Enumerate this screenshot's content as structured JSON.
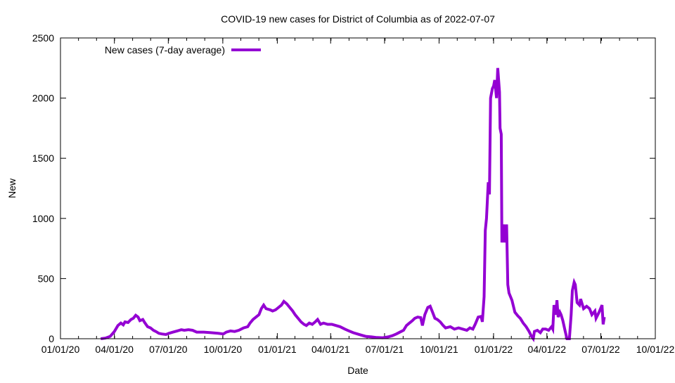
{
  "chart_data": {
    "type": "line",
    "title": "COVID-19 new cases for District of Columbia as of 2022-07-07",
    "xlabel": "Date",
    "ylabel": "New",
    "x_unit": "days since 2020-01-01",
    "xlim": [
      0,
      1004
    ],
    "ylim": [
      0,
      2500
    ],
    "grid": false,
    "legend_position": "top-left",
    "x_ticks": [
      {
        "day": 0,
        "label": "01/01/20"
      },
      {
        "day": 91,
        "label": "04/01/20"
      },
      {
        "day": 182,
        "label": "07/01/20"
      },
      {
        "day": 274,
        "label": "10/01/20"
      },
      {
        "day": 366,
        "label": "01/01/21"
      },
      {
        "day": 456,
        "label": "04/01/21"
      },
      {
        "day": 547,
        "label": "07/01/21"
      },
      {
        "day": 639,
        "label": "10/01/21"
      },
      {
        "day": 731,
        "label": "01/01/22"
      },
      {
        "day": 821,
        "label": "04/01/22"
      },
      {
        "day": 912,
        "label": "07/01/22"
      },
      {
        "day": 1004,
        "label": "10/01/22"
      }
    ],
    "y_ticks": [
      {
        "value": 0,
        "label": "0"
      },
      {
        "value": 500,
        "label": "500"
      },
      {
        "value": 1000,
        "label": "1000"
      },
      {
        "value": 1500,
        "label": "1500"
      },
      {
        "value": 2000,
        "label": "2000"
      },
      {
        "value": 2500,
        "label": "2500"
      }
    ],
    "series": [
      {
        "name": "New cases (7-day average)",
        "color": "#9400d3",
        "points": [
          [
            68,
            0
          ],
          [
            76,
            5
          ],
          [
            84,
            20
          ],
          [
            91,
            60
          ],
          [
            97,
            110
          ],
          [
            102,
            130
          ],
          [
            106,
            115
          ],
          [
            109,
            140
          ],
          [
            114,
            135
          ],
          [
            119,
            160
          ],
          [
            123,
            170
          ],
          [
            127,
            195
          ],
          [
            131,
            180
          ],
          [
            134,
            150
          ],
          [
            139,
            160
          ],
          [
            142,
            135
          ],
          [
            147,
            100
          ],
          [
            152,
            90
          ],
          [
            157,
            70
          ],
          [
            161,
            60
          ],
          [
            166,
            45
          ],
          [
            171,
            40
          ],
          [
            178,
            35
          ],
          [
            183,
            45
          ],
          [
            190,
            55
          ],
          [
            197,
            65
          ],
          [
            204,
            75
          ],
          [
            209,
            70
          ],
          [
            216,
            75
          ],
          [
            223,
            70
          ],
          [
            230,
            55
          ],
          [
            242,
            55
          ],
          [
            254,
            50
          ],
          [
            266,
            45
          ],
          [
            275,
            40
          ],
          [
            280,
            55
          ],
          [
            287,
            65
          ],
          [
            294,
            60
          ],
          [
            301,
            70
          ],
          [
            309,
            90
          ],
          [
            316,
            100
          ],
          [
            320,
            130
          ],
          [
            325,
            160
          ],
          [
            330,
            180
          ],
          [
            335,
            200
          ],
          [
            339,
            250
          ],
          [
            343,
            280
          ],
          [
            347,
            250
          ],
          [
            354,
            240
          ],
          [
            358,
            230
          ],
          [
            363,
            240
          ],
          [
            368,
            260
          ],
          [
            373,
            280
          ],
          [
            377,
            310
          ],
          [
            382,
            290
          ],
          [
            387,
            260
          ],
          [
            392,
            230
          ],
          [
            396,
            200
          ],
          [
            401,
            170
          ],
          [
            406,
            140
          ],
          [
            411,
            120
          ],
          [
            415,
            110
          ],
          [
            420,
            130
          ],
          [
            425,
            120
          ],
          [
            430,
            140
          ],
          [
            434,
            160
          ],
          [
            439,
            120
          ],
          [
            444,
            130
          ],
          [
            451,
            120
          ],
          [
            458,
            120
          ],
          [
            465,
            110
          ],
          [
            472,
            100
          ],
          [
            480,
            80
          ],
          [
            487,
            65
          ],
          [
            494,
            50
          ],
          [
            501,
            40
          ],
          [
            508,
            30
          ],
          [
            515,
            20
          ],
          [
            525,
            15
          ],
          [
            534,
            10
          ],
          [
            544,
            8
          ],
          [
            553,
            15
          ],
          [
            560,
            25
          ],
          [
            567,
            40
          ],
          [
            575,
            60
          ],
          [
            579,
            70
          ],
          [
            584,
            110
          ],
          [
            589,
            130
          ],
          [
            594,
            150
          ],
          [
            598,
            170
          ],
          [
            603,
            180
          ],
          [
            608,
            175
          ],
          [
            611,
            110
          ],
          [
            615,
            200
          ],
          [
            620,
            260
          ],
          [
            624,
            270
          ],
          [
            628,
            220
          ],
          [
            632,
            170
          ],
          [
            636,
            160
          ],
          [
            641,
            140
          ],
          [
            646,
            110
          ],
          [
            650,
            90
          ],
          [
            658,
            100
          ],
          [
            665,
            80
          ],
          [
            672,
            90
          ],
          [
            679,
            80
          ],
          [
            686,
            70
          ],
          [
            691,
            90
          ],
          [
            696,
            80
          ],
          [
            700,
            120
          ],
          [
            705,
            180
          ],
          [
            710,
            185
          ],
          [
            712,
            140
          ],
          [
            715,
            350
          ],
          [
            717,
            900
          ],
          [
            719,
            1000
          ],
          [
            722,
            1300
          ],
          [
            724,
            1200
          ],
          [
            726,
            2000
          ],
          [
            729,
            2080
          ],
          [
            731,
            2100
          ],
          [
            733,
            2150
          ],
          [
            736,
            2000
          ],
          [
            738,
            2250
          ],
          [
            741,
            2050
          ],
          [
            742,
            1750
          ],
          [
            744,
            1700
          ],
          [
            745,
            800
          ],
          [
            748,
            950
          ],
          [
            750,
            800
          ],
          [
            753,
            950
          ],
          [
            755,
            450
          ],
          [
            757,
            380
          ],
          [
            762,
            320
          ],
          [
            767,
            220
          ],
          [
            772,
            190
          ],
          [
            776,
            170
          ],
          [
            781,
            130
          ],
          [
            786,
            100
          ],
          [
            791,
            60
          ],
          [
            795,
            20
          ],
          [
            798,
            0
          ],
          [
            800,
            60
          ],
          [
            805,
            70
          ],
          [
            810,
            50
          ],
          [
            814,
            80
          ],
          [
            819,
            80
          ],
          [
            824,
            70
          ],
          [
            829,
            100
          ],
          [
            831,
            80
          ],
          [
            833,
            280
          ],
          [
            836,
            200
          ],
          [
            838,
            320
          ],
          [
            840,
            180
          ],
          [
            843,
            220
          ],
          [
            845,
            200
          ],
          [
            848,
            150
          ],
          [
            852,
            60
          ],
          [
            855,
            0
          ],
          [
            859,
            0
          ],
          [
            862,
            200
          ],
          [
            864,
            400
          ],
          [
            867,
            470
          ],
          [
            869,
            450
          ],
          [
            872,
            300
          ],
          [
            876,
            280
          ],
          [
            878,
            330
          ],
          [
            883,
            250
          ],
          [
            888,
            270
          ],
          [
            893,
            250
          ],
          [
            897,
            200
          ],
          [
            902,
            230
          ],
          [
            904,
            170
          ],
          [
            909,
            220
          ],
          [
            914,
            280
          ],
          [
            916,
            120
          ],
          [
            918,
            180
          ]
        ]
      }
    ]
  }
}
